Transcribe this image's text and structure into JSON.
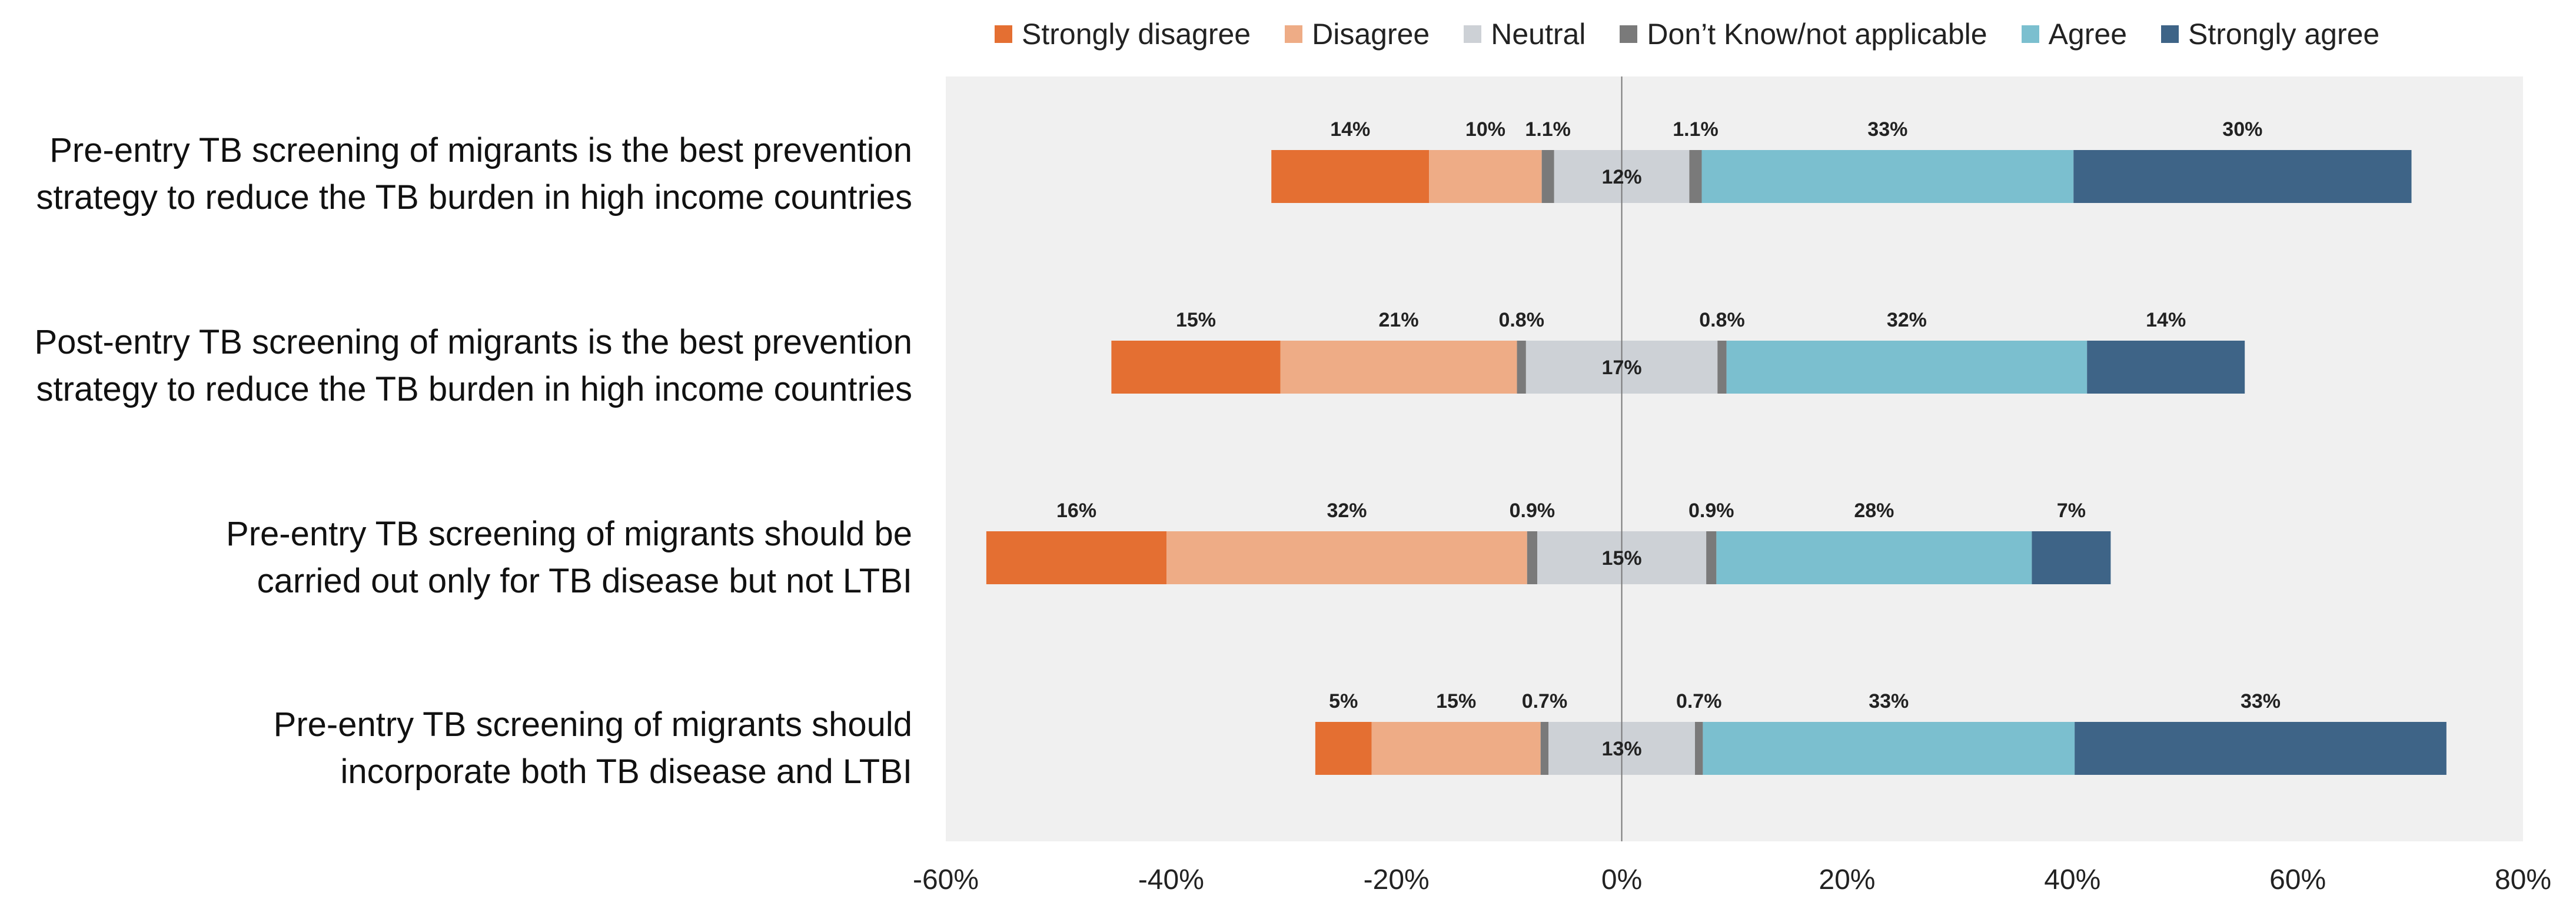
{
  "chart_data": {
    "type": "bar",
    "orientation": "horizontal",
    "stacked": "diverging",
    "title": "",
    "xlabel": "",
    "ylabel": "",
    "xlim": [
      -60,
      80
    ],
    "x_ticks": [
      -60,
      -40,
      -20,
      0,
      20,
      40,
      60,
      80
    ],
    "x_tick_labels": [
      "-60%",
      "-40%",
      "-20%",
      "0%",
      "20%",
      "40%",
      "60%",
      "80%"
    ],
    "grid": false,
    "legend_position": "top",
    "colors": {
      "strongly_disagree": "#E46F32",
      "disagree": "#EEAC86",
      "neutral": "#CDD1D6",
      "dont_know": "#7A7A7A",
      "agree": "#7BBFCF",
      "strongly_agree": "#3E6487",
      "plot_background": "#F0F0F0",
      "zero_line": "#777777"
    },
    "legend": [
      {
        "key": "strongly_disagree",
        "label": "Strongly disagree"
      },
      {
        "key": "disagree",
        "label": "Disagree"
      },
      {
        "key": "neutral",
        "label": "Neutral"
      },
      {
        "key": "dont_know",
        "label": "Don’t Know/not applicable"
      },
      {
        "key": "agree",
        "label": "Agree"
      },
      {
        "key": "strongly_agree",
        "label": "Strongly agree"
      }
    ],
    "categories": [
      {
        "lines": [
          "Pre-entry TB screening of migrants is the best prevention",
          "strategy to reduce the TB burden in high income countries"
        ],
        "segments": [
          {
            "key": "strongly_disagree",
            "value": 14,
            "label": "14%"
          },
          {
            "key": "disagree",
            "value": 10,
            "label": "10%"
          },
          {
            "key": "dont_know",
            "value": 1.1,
            "label": "1.1%"
          },
          {
            "key": "neutral",
            "value": 12,
            "label": "12%"
          },
          {
            "key": "dont_know",
            "value": 1.1,
            "label": "1.1%"
          },
          {
            "key": "agree",
            "value": 33,
            "label": "33%"
          },
          {
            "key": "strongly_agree",
            "value": 30,
            "label": "30%"
          }
        ]
      },
      {
        "lines": [
          "Post-entry TB screening of migrants is the best prevention",
          "strategy to reduce the TB burden in high income countries"
        ],
        "segments": [
          {
            "key": "strongly_disagree",
            "value": 15,
            "label": "15%"
          },
          {
            "key": "disagree",
            "value": 21,
            "label": "21%"
          },
          {
            "key": "dont_know",
            "value": 0.8,
            "label": "0.8%"
          },
          {
            "key": "neutral",
            "value": 17,
            "label": "17%"
          },
          {
            "key": "dont_know",
            "value": 0.8,
            "label": "0.8%"
          },
          {
            "key": "agree",
            "value": 32,
            "label": "32%"
          },
          {
            "key": "strongly_agree",
            "value": 14,
            "label": "14%"
          }
        ]
      },
      {
        "lines": [
          "Pre-entry TB screening of migrants should be",
          "carried out only for TB disease but not LTBI"
        ],
        "segments": [
          {
            "key": "strongly_disagree",
            "value": 16,
            "label": "16%"
          },
          {
            "key": "disagree",
            "value": 32,
            "label": "32%"
          },
          {
            "key": "dont_know",
            "value": 0.9,
            "label": "0.9%"
          },
          {
            "key": "neutral",
            "value": 15,
            "label": "15%"
          },
          {
            "key": "dont_know",
            "value": 0.9,
            "label": "0.9%"
          },
          {
            "key": "agree",
            "value": 28,
            "label": "28%"
          },
          {
            "key": "strongly_agree",
            "value": 7,
            "label": "7%"
          }
        ]
      },
      {
        "lines": [
          "Pre-entry TB screening of migrants should",
          "incorporate both TB disease and LTBI"
        ],
        "segments": [
          {
            "key": "strongly_disagree",
            "value": 5,
            "label": "5%"
          },
          {
            "key": "disagree",
            "value": 15,
            "label": "15%"
          },
          {
            "key": "dont_know",
            "value": 0.7,
            "label": "0.7%"
          },
          {
            "key": "neutral",
            "value": 13,
            "label": "13%"
          },
          {
            "key": "dont_know",
            "value": 0.7,
            "label": "0.7%"
          },
          {
            "key": "agree",
            "value": 33,
            "label": "33%"
          },
          {
            "key": "strongly_agree",
            "value": 33,
            "label": "33%"
          }
        ]
      }
    ]
  }
}
